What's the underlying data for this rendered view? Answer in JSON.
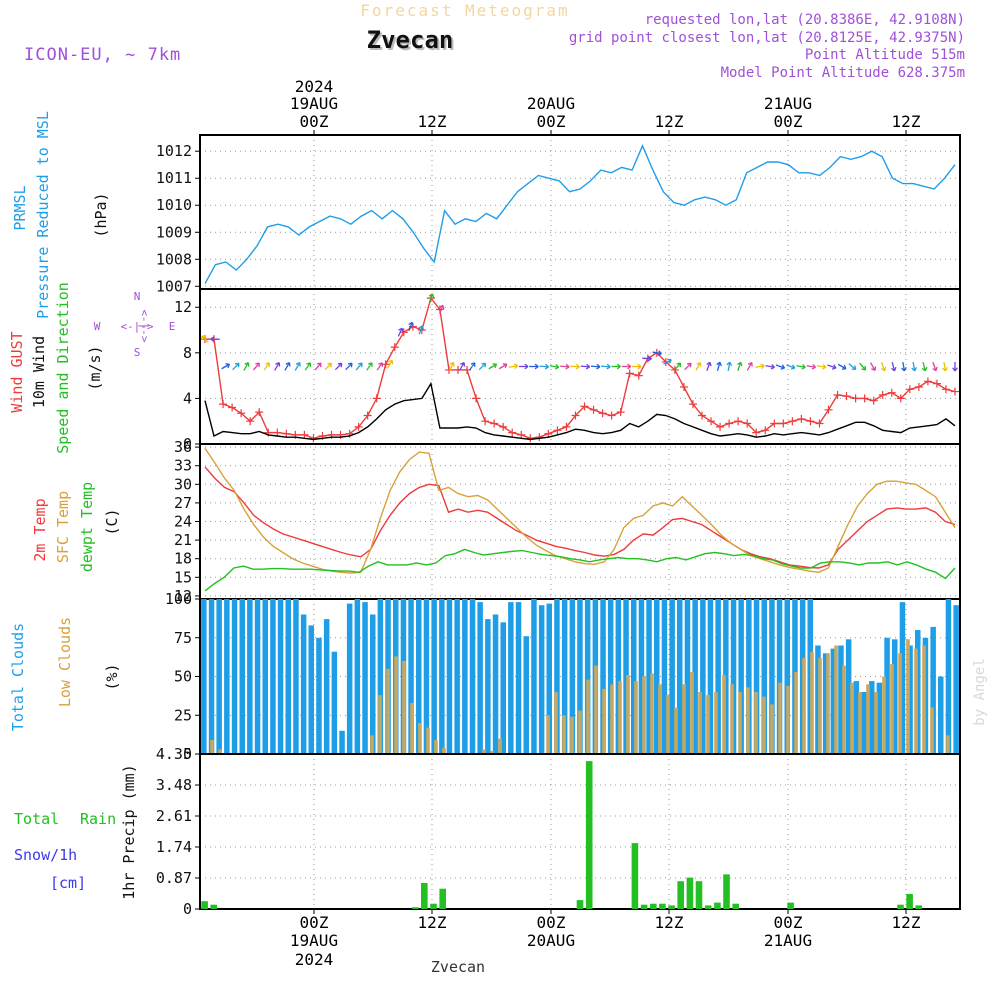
{
  "header": {
    "title_faint": "Forecast Meteogram",
    "location": "Zvecan",
    "model": "ICON-EU, ~ 7km",
    "requested": "requested lon,lat (20.8386E, 42.9108N)",
    "gridpoint": "grid point closest lon,lat (20.8125E, 42.9375N)",
    "point_alt": "Point Altitude 515m",
    "model_alt": "Model Point Altitude 628.375m",
    "footer": "Zvecan",
    "credit": "by Angel"
  },
  "time_axis": {
    "top_year": "2024",
    "bottom_year": "2024",
    "date_labels": [
      "19AUG",
      "20AUG",
      "21AUG"
    ],
    "tick_labels": [
      "00Z",
      "12Z",
      "00Z",
      "12Z",
      "00Z",
      "12Z"
    ],
    "hours_shown": 76
  },
  "panel_labels": {
    "pressure": [
      "PRMSL",
      "Pressure Reduced to MSL",
      "(hPa)"
    ],
    "wind": [
      "Wind GUST",
      "10m Wind",
      "Speed and Direction",
      "(m/s)"
    ],
    "compass": {
      "n": "N",
      "s": "S",
      "w": "W",
      "e": "E",
      "ns": "<-|->"
    },
    "temp": [
      "2m Temp",
      "SFC Temp",
      "dewpt Temp",
      "(C)"
    ],
    "clouds": [
      "Total Clouds",
      "Low Clouds",
      "(%)"
    ],
    "precip": [
      "Total",
      "Rain",
      "Snow/1h",
      "[cm]",
      "1hr Precip (mm)"
    ]
  },
  "colors": {
    "pressure": "#1f9ee8",
    "gust": "#ee3b3b",
    "wind": "#000000",
    "t2m": "#ee3b3b",
    "tsfc": "#d8a23a",
    "dewpt": "#22c022",
    "total_cloud": "#1f9ee8",
    "low_cloud": "#c8a860",
    "rain": "#22c022",
    "snow": "#3a3aee",
    "purple": "#a050d8"
  },
  "chart_data": [
    {
      "type": "line",
      "panel": "pressure",
      "ylabel": "(hPa)",
      "ylim": [
        1006.9,
        1012.6
      ],
      "yticks": [
        "1007",
        "1008",
        "1009",
        "1010",
        "1011",
        "1012"
      ],
      "ytick_values": [
        1007,
        1008,
        1009,
        1010,
        1011,
        1012
      ],
      "series": [
        {
          "name": "PRMSL",
          "values": [
            1007.1,
            1007.8,
            1007.9,
            1007.6,
            1008.0,
            1008.5,
            1009.2,
            1009.3,
            1009.2,
            1008.9,
            1009.2,
            1009.4,
            1009.6,
            1009.5,
            1009.3,
            1009.6,
            1009.8,
            1009.5,
            1009.8,
            1009.5,
            1009.0,
            1008.4,
            1007.9,
            1009.8,
            1009.3,
            1009.5,
            1009.4,
            1009.7,
            1009.5,
            1010.0,
            1010.5,
            1010.8,
            1011.1,
            1011.0,
            1010.9,
            1010.5,
            1010.6,
            1010.9,
            1011.3,
            1011.2,
            1011.4,
            1011.3,
            1012.2,
            1011.3,
            1010.5,
            1010.1,
            1010.0,
            1010.2,
            1010.3,
            1010.2,
            1010.0,
            1010.2,
            1011.2,
            1011.4,
            1011.6,
            1011.6,
            1011.5,
            1011.2,
            1011.2,
            1011.1,
            1011.4,
            1011.8,
            1011.7,
            1011.8,
            1012.0,
            1011.8,
            1011.0,
            1010.8,
            1010.8,
            1010.7,
            1010.6,
            1011.0,
            1011.5
          ]
        }
      ]
    },
    {
      "type": "line",
      "panel": "wind",
      "ylabel": "(m/s)",
      "ylim": [
        0,
        13.6
      ],
      "yticks": [
        "0",
        "4",
        "8",
        "12"
      ],
      "ytick_values": [
        0,
        4,
        8,
        12
      ],
      "series": [
        {
          "name": "Wind GUST",
          "values": [
            9.2,
            9.2,
            3.5,
            3.2,
            2.7,
            2.0,
            2.8,
            1.0,
            1.0,
            0.9,
            0.8,
            0.8,
            0.5,
            0.7,
            0.8,
            0.8,
            0.9,
            1.5,
            2.5,
            4.0,
            7.0,
            8.5,
            9.8,
            10.3,
            10.0,
            12.8,
            11.8,
            6.5,
            6.5,
            6.5,
            4.0,
            2.0,
            1.8,
            1.5,
            1.0,
            0.8,
            0.5,
            0.6,
            0.9,
            1.2,
            1.5,
            2.5,
            3.3,
            3.0,
            2.7,
            2.5,
            2.8,
            6.2,
            6.0,
            7.5,
            8.0,
            7.2,
            6.5,
            5.0,
            3.5,
            2.5,
            2.0,
            1.5,
            1.8,
            2.0,
            1.8,
            1.0,
            1.2,
            1.8,
            1.8,
            2.0,
            2.2,
            2.0,
            1.8,
            3.0,
            4.3,
            4.2,
            4.0,
            4.0,
            3.8,
            4.3,
            4.5,
            4.0,
            4.8,
            5.0,
            5.5,
            5.3,
            4.8,
            4.6
          ]
        },
        {
          "name": "10m Wind",
          "values": [
            3.8,
            0.7,
            1.1,
            1.0,
            0.9,
            0.9,
            1.1,
            0.8,
            0.7,
            0.6,
            0.6,
            0.5,
            0.4,
            0.5,
            0.6,
            0.6,
            0.7,
            1.0,
            1.5,
            2.2,
            3.0,
            3.5,
            3.8,
            3.9,
            4.0,
            5.3,
            1.4,
            1.4,
            1.4,
            1.5,
            1.4,
            1.0,
            0.8,
            0.7,
            0.6,
            0.5,
            0.4,
            0.5,
            0.6,
            0.8,
            1.0,
            1.3,
            1.2,
            1.0,
            0.9,
            1.0,
            1.2,
            1.8,
            1.5,
            2.0,
            2.6,
            2.5,
            2.2,
            1.8,
            1.5,
            1.2,
            0.9,
            0.7,
            0.8,
            0.9,
            0.8,
            0.6,
            0.7,
            0.9,
            0.8,
            0.9,
            1.0,
            0.9,
            0.8,
            1.0,
            1.3,
            1.6,
            1.9,
            1.9,
            1.6,
            1.2,
            1.1,
            1.0,
            1.4,
            1.5,
            1.6,
            1.7,
            2.2,
            1.6
          ]
        }
      ],
      "wind_direction_to_deg": [
        315,
        270,
        60,
        45,
        30,
        40,
        35,
        30,
        30,
        30,
        35,
        40,
        45,
        45,
        45,
        40,
        35,
        35,
        30,
        25,
        20,
        20,
        20,
        20,
        25,
        30,
        35,
        45,
        60,
        60,
        80,
        90,
        90,
        95,
        100,
        95,
        95,
        95,
        95,
        95,
        90,
        90,
        90,
        95,
        100,
        60,
        40,
        45,
        30,
        20,
        15,
        10,
        20,
        30,
        80,
        100,
        110,
        110,
        100,
        100,
        100,
        110,
        120,
        130,
        140,
        150,
        160,
        165,
        170,
        170,
        165,
        160,
        170,
        180
      ]
    },
    {
      "type": "line",
      "panel": "temperature",
      "ylabel": "(C)",
      "ylim": [
        11.5,
        36.5
      ],
      "yticks": [
        "12",
        "15",
        "18",
        "21",
        "24",
        "27",
        "30",
        "33",
        "36"
      ],
      "ytick_values": [
        12,
        15,
        18,
        21,
        24,
        27,
        30,
        33,
        36
      ],
      "series": [
        {
          "name": "2m Temp",
          "values": [
            32.8,
            31.0,
            29.5,
            28.8,
            27.0,
            25.0,
            23.8,
            22.8,
            22.0,
            21.5,
            21.0,
            20.5,
            20.0,
            19.5,
            19.0,
            18.6,
            18.3,
            19.5,
            22.5,
            25.0,
            27.0,
            28.5,
            29.5,
            30.0,
            29.8,
            25.5,
            26.0,
            25.5,
            25.8,
            25.5,
            24.5,
            23.5,
            22.5,
            21.8,
            21.0,
            20.5,
            20.0,
            19.7,
            19.3,
            19.0,
            18.6,
            18.4,
            18.7,
            19.5,
            21.0,
            22.0,
            21.8,
            23.0,
            24.3,
            24.5,
            24.0,
            23.5,
            22.5,
            21.5,
            20.5,
            19.5,
            18.8,
            18.3,
            18.0,
            17.5,
            17.0,
            16.8,
            16.6,
            16.5,
            17.0,
            19.5,
            21.0,
            22.5,
            24.0,
            25.0,
            26.0,
            26.2,
            26.0,
            26.0,
            26.2,
            25.5,
            24.0,
            23.5
          ]
        },
        {
          "name": "SFC Temp",
          "values": [
            35.8,
            33.5,
            31.0,
            29.0,
            26.0,
            23.5,
            21.5,
            20.0,
            19.0,
            18.0,
            17.3,
            16.8,
            16.3,
            16.0,
            15.8,
            15.7,
            15.8,
            19.5,
            24.5,
            29.0,
            32.0,
            34.0,
            35.2,
            35.0,
            29.0,
            29.5,
            28.5,
            28.0,
            28.2,
            27.5,
            26.0,
            24.5,
            23.0,
            21.5,
            20.2,
            19.3,
            18.5,
            18.0,
            17.5,
            17.2,
            17.1,
            17.5,
            19.5,
            23.0,
            24.5,
            25.0,
            26.5,
            27.0,
            26.5,
            28.0,
            26.5,
            25.0,
            23.5,
            21.8,
            20.5,
            19.5,
            18.5,
            18.0,
            17.5,
            17.0,
            16.6,
            16.3,
            16.0,
            15.8,
            16.5,
            20.0,
            23.5,
            26.5,
            28.5,
            30.0,
            30.5,
            30.5,
            30.2,
            30.0,
            29.0,
            28.0,
            25.5,
            23.0
          ]
        },
        {
          "name": "dewpt Temp",
          "values": [
            12.8,
            14.0,
            15.0,
            16.5,
            16.8,
            16.3,
            16.3,
            16.4,
            16.4,
            16.3,
            16.3,
            16.3,
            16.2,
            16.1,
            16.0,
            16.0,
            15.8,
            16.8,
            17.5,
            17.0,
            17.0,
            17.0,
            17.3,
            17.0,
            17.3,
            18.5,
            18.8,
            19.5,
            19.0,
            18.6,
            18.8,
            19.0,
            19.2,
            19.3,
            19.0,
            18.7,
            18.5,
            18.3,
            18.0,
            17.8,
            17.5,
            17.8,
            18.0,
            18.2,
            18.0,
            18.0,
            17.8,
            17.5,
            18.0,
            18.2,
            17.8,
            18.3,
            18.8,
            19.0,
            18.8,
            18.5,
            18.7,
            18.5,
            18.0,
            17.8,
            17.2,
            16.8,
            16.5,
            16.5,
            17.3,
            17.5,
            17.5,
            17.3,
            17.0,
            17.3,
            17.3,
            17.5,
            17.0,
            17.5,
            17.0,
            16.3,
            15.8,
            14.8,
            16.5
          ]
        }
      ]
    },
    {
      "type": "bar",
      "panel": "clouds",
      "ylabel": "(%)",
      "ylim": [
        0,
        100
      ],
      "yticks": [
        "0",
        "25",
        "50",
        "75",
        "100"
      ],
      "ytick_values": [
        0,
        25,
        50,
        75,
        100
      ],
      "series": [
        {
          "name": "Total Clouds",
          "values": [
            100,
            100,
            100,
            100,
            100,
            100,
            100,
            100,
            100,
            100,
            100,
            100,
            100,
            90,
            83,
            75,
            87,
            66,
            15,
            97,
            100,
            98,
            90,
            100,
            100,
            100,
            100,
            100,
            100,
            100,
            100,
            100,
            100,
            100,
            100,
            100,
            98,
            87,
            90,
            85,
            98,
            98,
            76,
            100,
            96,
            97,
            100,
            100,
            100,
            100,
            100,
            100,
            100,
            100,
            100,
            100,
            100,
            100,
            100,
            100,
            100,
            100,
            100,
            100,
            100,
            100,
            100,
            100,
            100,
            100,
            100,
            100,
            100,
            100,
            100,
            100,
            100,
            100,
            100,
            100,
            70,
            65,
            68,
            70,
            74,
            47,
            40,
            47,
            46,
            75,
            74,
            98,
            70,
            80,
            75,
            82,
            50,
            100,
            96
          ]
        },
        {
          "name": "Low Clouds",
          "values": [
            0,
            9,
            3,
            0,
            0,
            0,
            0,
            0,
            0,
            0,
            0,
            0,
            0,
            0,
            0,
            0,
            0,
            0,
            0,
            0,
            0,
            12,
            38,
            55,
            63,
            60,
            33,
            20,
            17,
            9,
            4,
            0,
            0,
            0,
            0,
            3,
            2,
            10,
            0,
            0,
            0,
            0,
            0,
            25,
            40,
            25,
            24,
            28,
            48,
            57,
            42,
            45,
            47,
            51,
            47,
            50,
            52,
            45,
            38,
            30,
            45,
            53,
            40,
            38,
            40,
            51,
            45,
            40,
            43,
            40,
            37,
            32,
            46,
            44,
            53,
            62,
            66,
            62,
            65,
            70,
            57,
            46,
            40,
            45,
            40,
            50,
            58,
            65,
            74,
            68,
            70,
            30,
            0,
            12,
            0
          ]
        }
      ]
    },
    {
      "type": "bar",
      "panel": "precip",
      "ylabel": "1hr Precip (mm)",
      "ylim": [
        0,
        4.35
      ],
      "yticks": [
        "0",
        "0.87",
        "1.74",
        "2.61",
        "3.48",
        "4.35"
      ],
      "ytick_values": [
        0,
        0.87,
        1.74,
        2.61,
        3.48,
        4.35
      ],
      "series": [
        {
          "name": "Total Rain",
          "values": [
            0.22,
            0.12,
            0,
            0,
            0,
            0,
            0,
            0,
            0,
            0,
            0,
            0,
            0,
            0,
            0,
            0,
            0,
            0,
            0,
            0,
            0,
            0,
            0,
            0.05,
            0.73,
            0.15,
            0.57,
            0,
            0,
            0,
            0,
            0,
            0,
            0,
            0,
            0,
            0,
            0,
            0,
            0,
            0,
            0.25,
            4.15,
            0,
            0,
            0,
            0,
            1.85,
            0.12,
            0.15,
            0.15,
            0.1,
            0.78,
            0.88,
            0.78,
            0.1,
            0.18,
            0.97,
            0.15,
            0,
            0,
            0,
            0,
            0,
            0.18,
            0,
            0,
            0,
            0,
            0,
            0,
            0,
            0,
            0,
            0,
            0,
            0.12,
            0.42,
            0.1,
            0,
            0,
            0,
            0
          ]
        },
        {
          "name": "Snow/1h",
          "values": []
        }
      ]
    }
  ]
}
